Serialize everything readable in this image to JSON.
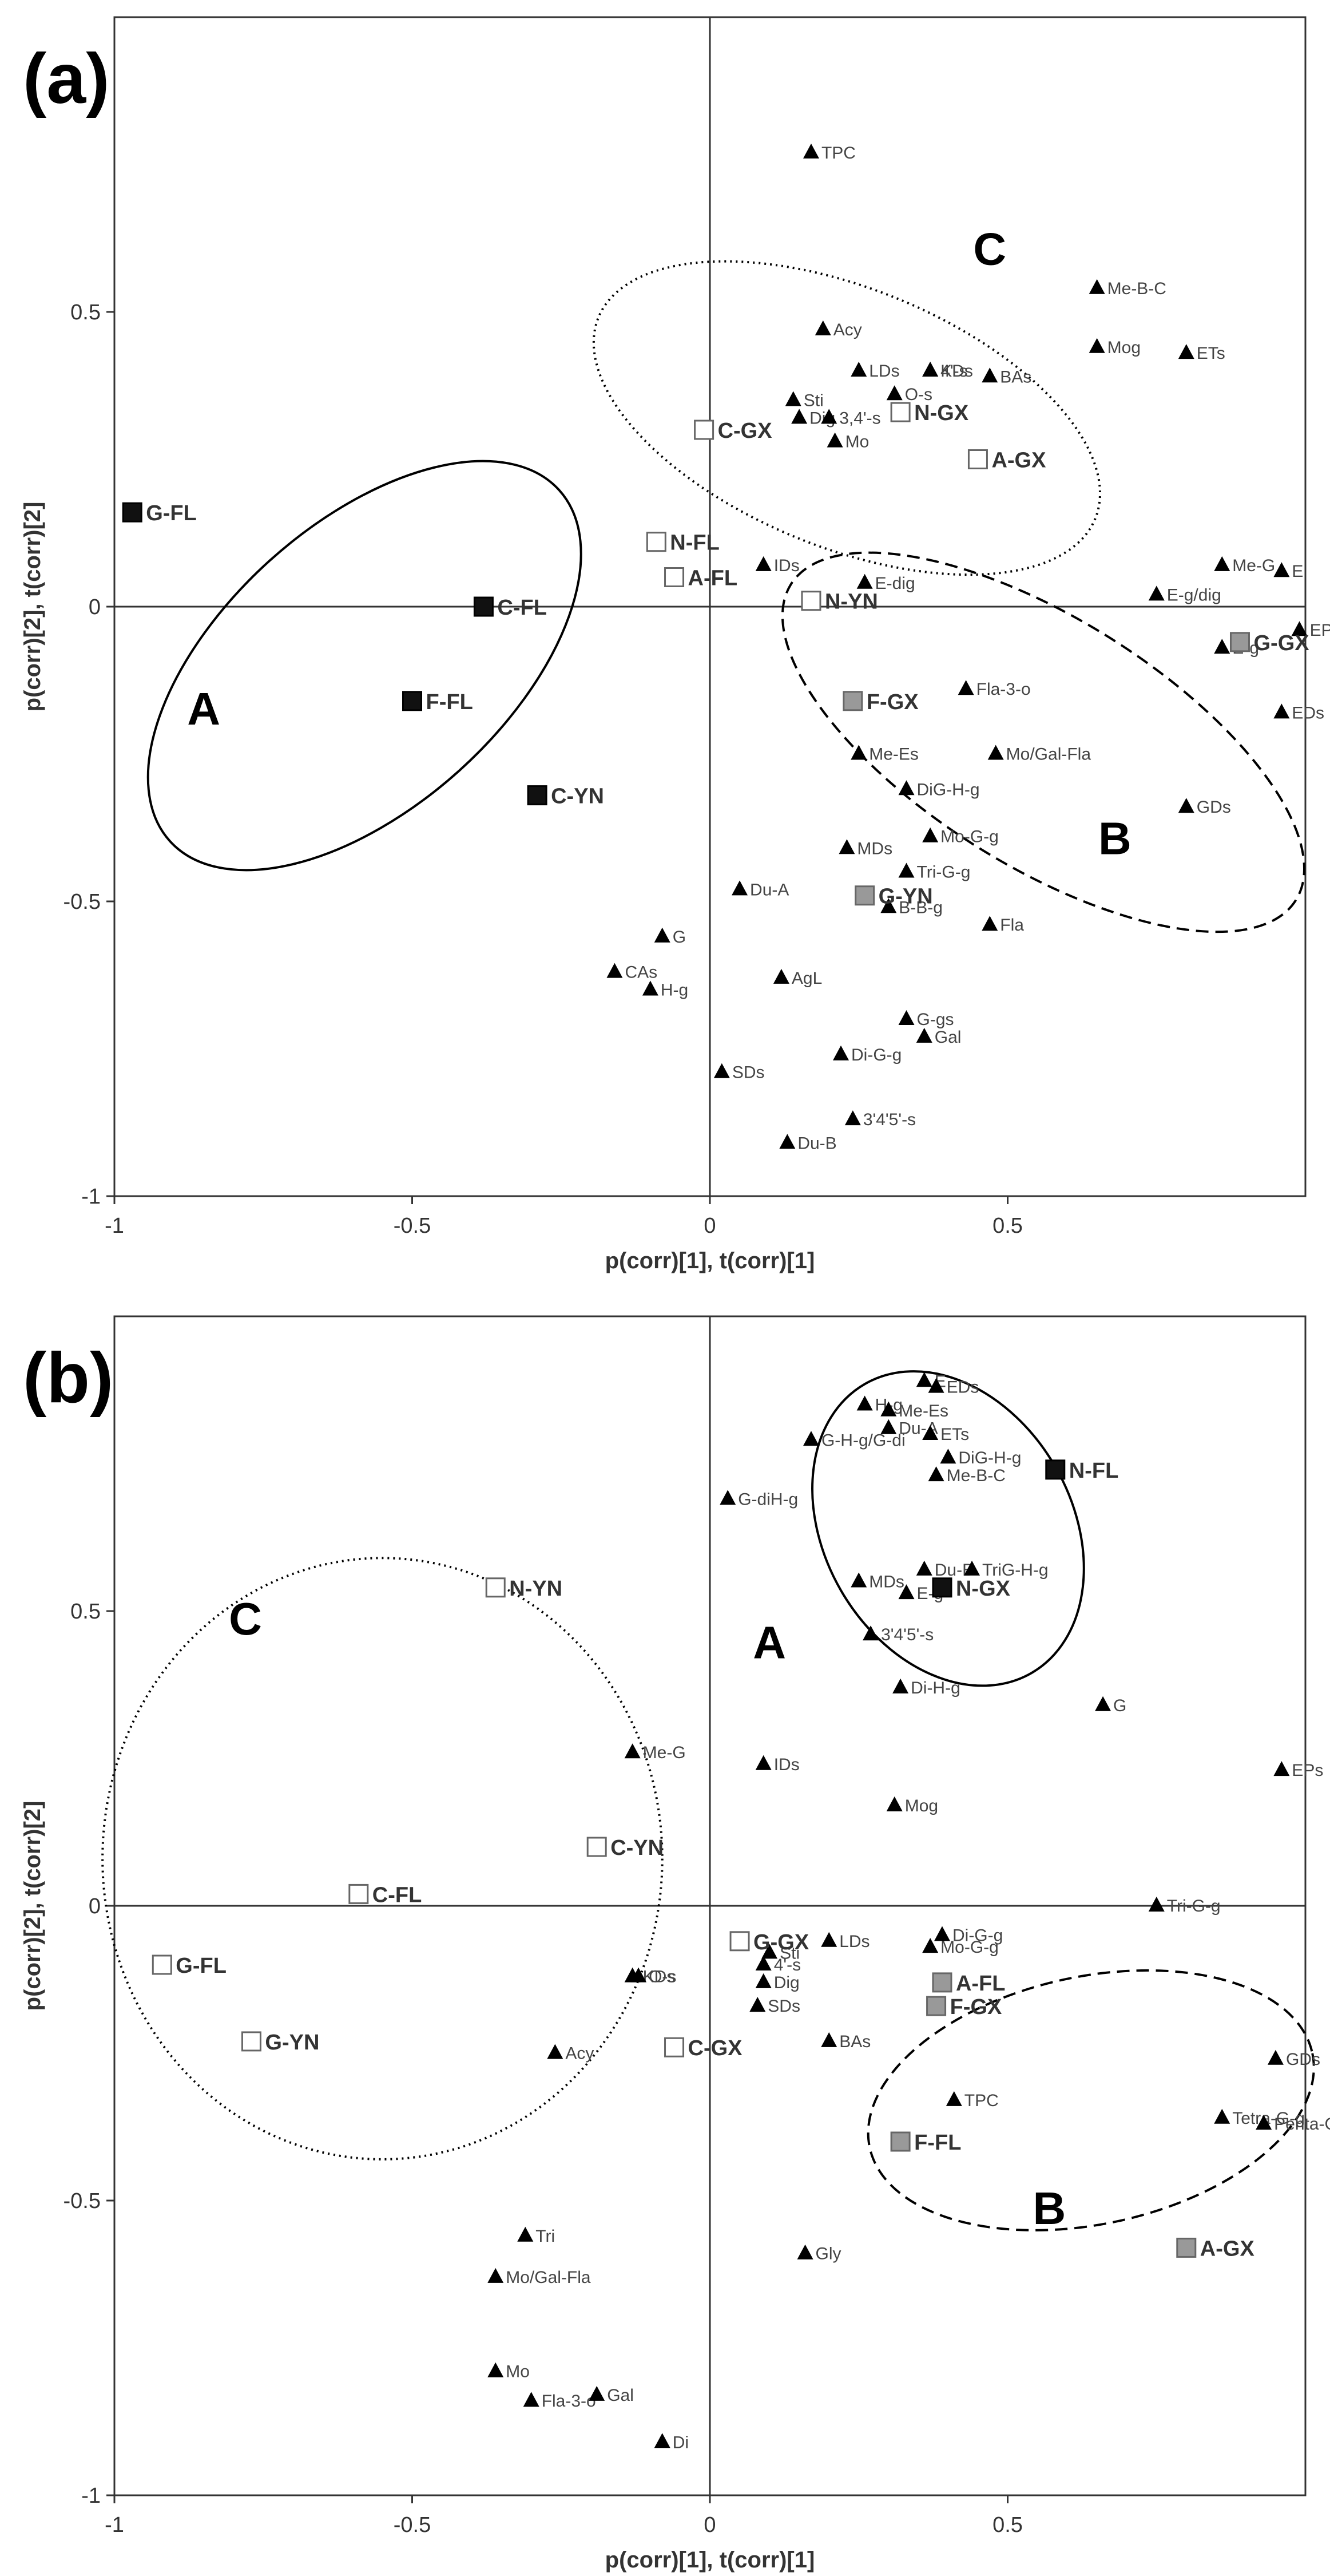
{
  "chart_data": [
    {
      "type": "scatter",
      "panel_label": "(a)",
      "xlabel": "p(corr)[1], t(corr)[1]",
      "ylabel": "p(corr)[2], t(corr)[2]",
      "xlim": [
        -1,
        1
      ],
      "ylim": [
        -1,
        1
      ],
      "xticks": [
        "-1",
        "-0.5",
        "0",
        "0.5"
      ],
      "yticks": [
        "-1",
        "-0.5",
        "0",
        "0.5"
      ],
      "xtick_values": [
        -1,
        -0.5,
        0,
        0.5
      ],
      "ytick_values": [
        -1,
        -0.5,
        0,
        0.5
      ],
      "variables": [
        {
          "label": "TPC",
          "x": 0.17,
          "y": 0.77
        },
        {
          "label": "Me-B-C",
          "x": 0.65,
          "y": 0.54
        },
        {
          "label": "Mog",
          "x": 0.65,
          "y": 0.44
        },
        {
          "label": "ETs",
          "x": 0.8,
          "y": 0.43
        },
        {
          "label": "Acy",
          "x": 0.19,
          "y": 0.47
        },
        {
          "label": "LDs",
          "x": 0.25,
          "y": 0.4
        },
        {
          "label": "KDs",
          "x": 0.37,
          "y": 0.4
        },
        {
          "label": "4'-s",
          "x": 0.37,
          "y": 0.4
        },
        {
          "label": "BAs",
          "x": 0.47,
          "y": 0.39
        },
        {
          "label": "Sti",
          "x": 0.14,
          "y": 0.35
        },
        {
          "label": "Dig",
          "x": 0.15,
          "y": 0.32
        },
        {
          "label": "3,4'-s",
          "x": 0.2,
          "y": 0.32
        },
        {
          "label": "Mo",
          "x": 0.21,
          "y": 0.28
        },
        {
          "label": "O-s",
          "x": 0.31,
          "y": 0.36
        },
        {
          "label": "IDs",
          "x": 0.09,
          "y": 0.07
        },
        {
          "label": "E-dig",
          "x": 0.26,
          "y": 0.04
        },
        {
          "label": "Me-G",
          "x": 0.86,
          "y": 0.07
        },
        {
          "label": "E",
          "x": 0.96,
          "y": 0.06
        },
        {
          "label": "E-g/dig",
          "x": 0.75,
          "y": 0.02
        },
        {
          "label": "EPs",
          "x": 0.99,
          "y": -0.04
        },
        {
          "label": "E-g",
          "x": 0.86,
          "y": -0.07
        },
        {
          "label": "Fla-3-o",
          "x": 0.43,
          "y": -0.14
        },
        {
          "label": "EDs",
          "x": 0.96,
          "y": -0.18
        },
        {
          "label": "Me-Es",
          "x": 0.25,
          "y": -0.25
        },
        {
          "label": "Mo/Gal-Fla",
          "x": 0.48,
          "y": -0.25
        },
        {
          "label": "DiG-H-g",
          "x": 0.33,
          "y": -0.31
        },
        {
          "label": "GDs",
          "x": 0.8,
          "y": -0.34
        },
        {
          "label": "Mo-G-g",
          "x": 0.37,
          "y": -0.39
        },
        {
          "label": "MDs",
          "x": 0.23,
          "y": -0.41
        },
        {
          "label": "Tri-G-g",
          "x": 0.33,
          "y": -0.45
        },
        {
          "label": "Du-A",
          "x": 0.05,
          "y": -0.48
        },
        {
          "label": "B-B-g",
          "x": 0.3,
          "y": -0.51
        },
        {
          "label": "Fla",
          "x": 0.47,
          "y": -0.54
        },
        {
          "label": "G",
          "x": -0.08,
          "y": -0.56
        },
        {
          "label": "CAs",
          "x": -0.16,
          "y": -0.62
        },
        {
          "label": "AgL",
          "x": 0.12,
          "y": -0.63
        },
        {
          "label": "H-g",
          "x": -0.1,
          "y": -0.65
        },
        {
          "label": "G-gs",
          "x": 0.33,
          "y": -0.7
        },
        {
          "label": "Gal",
          "x": 0.36,
          "y": -0.73
        },
        {
          "label": "Di-G-g",
          "x": 0.22,
          "y": -0.76
        },
        {
          "label": "SDs",
          "x": 0.02,
          "y": -0.79
        },
        {
          "label": "3'4'5'-s",
          "x": 0.24,
          "y": -0.87
        },
        {
          "label": "Du-B",
          "x": 0.13,
          "y": -0.91
        }
      ],
      "samples": [
        {
          "label": "G-FL",
          "x": -0.97,
          "y": 0.16,
          "group": "A"
        },
        {
          "label": "C-FL",
          "x": -0.38,
          "y": 0.0,
          "group": "A"
        },
        {
          "label": "F-FL",
          "x": -0.5,
          "y": -0.16,
          "group": "A"
        },
        {
          "label": "C-YN",
          "x": -0.29,
          "y": -0.32,
          "group": "A"
        },
        {
          "label": "F-GX",
          "x": 0.24,
          "y": -0.16,
          "group": "B"
        },
        {
          "label": "G-YN",
          "x": 0.26,
          "y": -0.49,
          "group": "B"
        },
        {
          "label": "G-GX",
          "x": 0.89,
          "y": -0.06,
          "group": "B"
        },
        {
          "label": "C-GX",
          "x": -0.01,
          "y": 0.3,
          "group": "C"
        },
        {
          "label": "N-GX",
          "x": 0.32,
          "y": 0.33,
          "group": "C"
        },
        {
          "label": "A-GX",
          "x": 0.45,
          "y": 0.25,
          "group": "C"
        },
        {
          "label": "N-FL",
          "x": -0.09,
          "y": 0.11,
          "group": "C"
        },
        {
          "label": "A-FL",
          "x": -0.06,
          "y": 0.05,
          "group": "C"
        },
        {
          "label": "N-YN",
          "x": 0.17,
          "y": 0.01,
          "group": "C"
        }
      ],
      "group_fill": {
        "A": "#111111",
        "B": "#999999",
        "C": "#ffffff"
      },
      "groups": [
        {
          "label": "A",
          "cx": -0.58,
          "cy": -0.1,
          "rx": 0.44,
          "ry": 0.24,
          "angle": -42,
          "style": "solid",
          "label_x": -0.85,
          "label_y": -0.2
        },
        {
          "label": "B",
          "cx": 0.56,
          "cy": -0.23,
          "rx": 0.5,
          "ry": 0.21,
          "angle": 32,
          "style": "dashed",
          "label_x": 0.68,
          "label_y": -0.42
        },
        {
          "label": "C",
          "cx": 0.23,
          "cy": 0.32,
          "rx": 0.45,
          "ry": 0.22,
          "angle": 22,
          "style": "dotted",
          "label_x": 0.47,
          "label_y": 0.58
        }
      ]
    },
    {
      "type": "scatter",
      "panel_label": "(b)",
      "xlabel": "p(corr)[1], t(corr)[1]",
      "ylabel": "p(corr)[2], t(corr)[2]",
      "xlim": [
        -1,
        1
      ],
      "ylim": [
        -1,
        1
      ],
      "xticks": [
        "-1",
        "-0.5",
        "0",
        "0.5"
      ],
      "yticks": [
        "-1",
        "-0.5",
        "0",
        "0.5"
      ],
      "xtick_values": [
        -1,
        -0.5,
        0,
        0.5
      ],
      "ytick_values": [
        -1,
        -0.5,
        0,
        0.5
      ],
      "variables": [
        {
          "label": "E",
          "x": 0.36,
          "y": 0.89
        },
        {
          "label": "EDs",
          "x": 0.38,
          "y": 0.88
        },
        {
          "label": "H-g",
          "x": 0.26,
          "y": 0.85
        },
        {
          "label": "Me-Es",
          "x": 0.3,
          "y": 0.84
        },
        {
          "label": "Du-A",
          "x": 0.3,
          "y": 0.81
        },
        {
          "label": "ETs",
          "x": 0.37,
          "y": 0.8
        },
        {
          "label": "G-H-g/G-di",
          "x": 0.17,
          "y": 0.79
        },
        {
          "label": "DiG-H-g",
          "x": 0.4,
          "y": 0.76
        },
        {
          "label": "Me-B-C",
          "x": 0.38,
          "y": 0.73
        },
        {
          "label": "G-diH-g",
          "x": 0.03,
          "y": 0.69
        },
        {
          "label": "MDs",
          "x": 0.25,
          "y": 0.55
        },
        {
          "label": "Du-B",
          "x": 0.36,
          "y": 0.57
        },
        {
          "label": "TriG-H-g",
          "x": 0.44,
          "y": 0.57
        },
        {
          "label": "E-g",
          "x": 0.33,
          "y": 0.53
        },
        {
          "label": "3'4'5'-s",
          "x": 0.27,
          "y": 0.46
        },
        {
          "label": "Di-H-g",
          "x": 0.32,
          "y": 0.37
        },
        {
          "label": "G",
          "x": 0.66,
          "y": 0.34
        },
        {
          "label": "Me-G",
          "x": -0.13,
          "y": 0.26
        },
        {
          "label": "IDs",
          "x": 0.09,
          "y": 0.24
        },
        {
          "label": "EPs",
          "x": 0.96,
          "y": 0.23
        },
        {
          "label": "Mog",
          "x": 0.31,
          "y": 0.17
        },
        {
          "label": "Tri-G-g",
          "x": 0.75,
          "y": 0.0
        },
        {
          "label": "Di-G-g",
          "x": 0.39,
          "y": -0.05
        },
        {
          "label": "Mo-G-g",
          "x": 0.37,
          "y": -0.07
        },
        {
          "label": "LDs",
          "x": 0.2,
          "y": -0.06
        },
        {
          "label": "Sti",
          "x": 0.1,
          "y": -0.08
        },
        {
          "label": "4'-s",
          "x": 0.09,
          "y": -0.1
        },
        {
          "label": "KDs",
          "x": -0.13,
          "y": -0.12
        },
        {
          "label": "O-s",
          "x": -0.12,
          "y": -0.12
        },
        {
          "label": "Dig",
          "x": 0.09,
          "y": -0.13
        },
        {
          "label": "SDs",
          "x": 0.08,
          "y": -0.17
        },
        {
          "label": "BAs",
          "x": 0.2,
          "y": -0.23
        },
        {
          "label": "Acy",
          "x": -0.26,
          "y": -0.25
        },
        {
          "label": "TPC",
          "x": 0.41,
          "y": -0.33
        },
        {
          "label": "GDs",
          "x": 0.95,
          "y": -0.26
        },
        {
          "label": "Tetra-G-g",
          "x": 0.86,
          "y": -0.36
        },
        {
          "label": "Penta-G-g",
          "x": 0.93,
          "y": -0.37
        },
        {
          "label": "Tri",
          "x": -0.31,
          "y": -0.56
        },
        {
          "label": "Gly",
          "x": 0.16,
          "y": -0.59
        },
        {
          "label": "Mo/Gal-Fla",
          "x": -0.36,
          "y": -0.63
        },
        {
          "label": "Mo",
          "x": -0.36,
          "y": -0.79
        },
        {
          "label": "Fla-3-o",
          "x": -0.3,
          "y": -0.84
        },
        {
          "label": "Gal",
          "x": -0.19,
          "y": -0.83
        },
        {
          "label": "Di",
          "x": -0.08,
          "y": -0.91
        }
      ],
      "samples": [
        {
          "label": "N-FL",
          "x": 0.58,
          "y": 0.74,
          "group": "A"
        },
        {
          "label": "N-GX",
          "x": 0.39,
          "y": 0.54,
          "group": "A"
        },
        {
          "label": "A-FL",
          "x": 0.39,
          "y": -0.13,
          "group": "B"
        },
        {
          "label": "F-GX",
          "x": 0.38,
          "y": -0.17,
          "group": "B"
        },
        {
          "label": "F-FL",
          "x": 0.32,
          "y": -0.4,
          "group": "B"
        },
        {
          "label": "A-GX",
          "x": 0.8,
          "y": -0.58,
          "group": "B"
        },
        {
          "label": "N-YN",
          "x": -0.36,
          "y": 0.54,
          "group": "C"
        },
        {
          "label": "C-YN",
          "x": -0.19,
          "y": 0.1,
          "group": "C"
        },
        {
          "label": "C-FL",
          "x": -0.59,
          "y": 0.02,
          "group": "C"
        },
        {
          "label": "G-FL",
          "x": -0.92,
          "y": -0.1,
          "group": "C"
        },
        {
          "label": "G-YN",
          "x": -0.77,
          "y": -0.23,
          "group": "C"
        },
        {
          "label": "G-GX",
          "x": 0.05,
          "y": -0.06,
          "group": "C"
        },
        {
          "label": "C-GX",
          "x": -0.06,
          "y": -0.24,
          "group": "C"
        }
      ],
      "group_fill": {
        "A": "#111111",
        "B": "#999999",
        "C": "#ffffff"
      },
      "groups": [
        {
          "label": "A",
          "cx": 0.4,
          "cy": 0.64,
          "rx": 0.28,
          "ry": 0.21,
          "angle": 60,
          "style": "solid",
          "label_x": 0.1,
          "label_y": 0.42
        },
        {
          "label": "B",
          "cx": 0.64,
          "cy": -0.33,
          "rx": 0.38,
          "ry": 0.21,
          "angle": -12,
          "style": "dashed",
          "label_x": 0.57,
          "label_y": -0.54
        },
        {
          "label": "C",
          "cx": -0.55,
          "cy": 0.08,
          "rx": 0.47,
          "ry": 0.51,
          "angle": 0,
          "style": "dotted",
          "label_x": -0.78,
          "label_y": 0.46
        }
      ]
    }
  ]
}
